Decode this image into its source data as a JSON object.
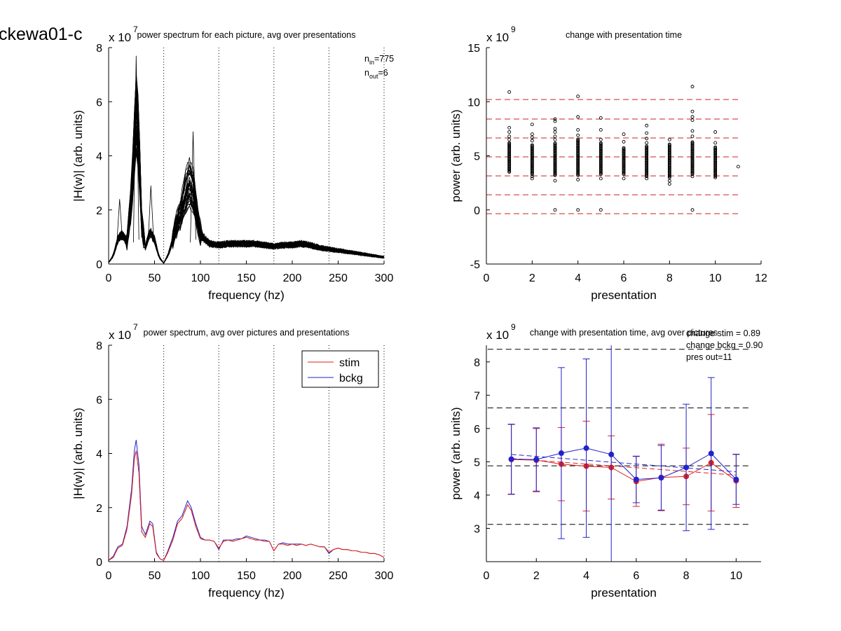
{
  "figure_title": "ckewa01-c",
  "chart_data": [
    {
      "id": "p1",
      "type": "line",
      "title": "power spectrum for each picture, avg over presentations",
      "xlabel": "frequency (hz)",
      "ylabel": "|H(w)| (arb. units)",
      "y_multiplier": {
        "base": "x 10",
        "exp": "7"
      },
      "xlim": [
        0,
        300
      ],
      "ylim": [
        0,
        8
      ],
      "xticks": [
        0,
        50,
        100,
        150,
        200,
        250,
        300
      ],
      "yticks": [
        0,
        2,
        4,
        6,
        8
      ],
      "vlines_dotted": [
        60,
        120,
        180,
        240,
        300
      ],
      "annotations": [
        {
          "main": "n",
          "sub": "in",
          "text": "=775"
        },
        {
          "main": "n",
          "sub": "out",
          "text": "=6"
        }
      ],
      "series_count": 40,
      "mean_envelope": {
        "x": [
          0,
          5,
          10,
          15,
          20,
          25,
          28,
          30,
          33,
          36,
          40,
          45,
          50,
          55,
          60,
          65,
          70,
          75,
          80,
          85,
          88,
          92,
          96,
          100,
          110,
          120,
          130,
          140,
          150,
          160,
          170,
          180,
          190,
          200,
          210,
          220,
          230,
          240,
          250,
          260,
          270,
          280,
          290,
          300
        ],
        "y": [
          0.05,
          0.3,
          0.9,
          1.1,
          0.8,
          2.5,
          4.5,
          5.6,
          4.6,
          1.5,
          0.6,
          1.2,
          0.9,
          0.25,
          0.03,
          0.35,
          0.9,
          1.5,
          2.0,
          2.7,
          2.9,
          2.6,
          1.8,
          1.1,
          0.75,
          0.7,
          0.75,
          0.75,
          0.75,
          0.75,
          0.7,
          0.65,
          0.7,
          0.7,
          0.75,
          0.7,
          0.6,
          0.55,
          0.5,
          0.45,
          0.4,
          0.35,
          0.3,
          0.25
        ]
      },
      "peak_extremes": [
        {
          "x": 30,
          "y": 7.7
        },
        {
          "x": 46,
          "y": 2.9
        },
        {
          "x": 92,
          "y": 4.9
        },
        {
          "x": 12,
          "y": 2.4
        }
      ]
    },
    {
      "id": "p2",
      "type": "scatter",
      "title": "change with presentation time",
      "xlabel": "presentation",
      "ylabel": "power (arb. units)",
      "y_multiplier": {
        "base": "x 10",
        "exp": "9"
      },
      "xlim": [
        0,
        12
      ],
      "ylim": [
        -5,
        15
      ],
      "xticks": [
        0,
        2,
        4,
        6,
        8,
        10,
        12
      ],
      "yticks": [
        -5,
        0,
        5,
        10,
        15
      ],
      "hlines_dashed": [
        10.2,
        8.4,
        6.65,
        4.9,
        3.15,
        1.4,
        -0.35
      ],
      "hline_color": "#cc2222",
      "hline_xrange": [
        0,
        11
      ],
      "point_columns": [
        {
          "x": 1,
          "dense": [
            3.5,
            6.2
          ],
          "outliers": [
            6.5,
            6.8,
            7.2,
            7.6,
            10.9
          ]
        },
        {
          "x": 2,
          "dense": [
            3.3,
            6.0
          ],
          "outliers": [
            2.9,
            3.1,
            6.4,
            6.7,
            7.0,
            7.9
          ]
        },
        {
          "x": 3,
          "dense": [
            3.2,
            6.2
          ],
          "outliers": [
            0.0,
            2.7,
            6.5,
            6.8,
            7.2,
            7.5,
            8.2,
            8.4
          ]
        },
        {
          "x": 4,
          "dense": [
            3.2,
            6.6
          ],
          "outliers": [
            0.0,
            2.8,
            6.9,
            7.4,
            8.6,
            10.5
          ]
        },
        {
          "x": 5,
          "dense": [
            3.3,
            6.2
          ],
          "outliers": [
            0.0,
            2.9,
            6.5,
            7.4,
            8.5
          ]
        },
        {
          "x": 6,
          "dense": [
            3.3,
            5.8
          ],
          "outliers": [
            2.9,
            6.3,
            7.0
          ]
        },
        {
          "x": 7,
          "dense": [
            3.1,
            5.9
          ],
          "outliers": [
            2.9,
            6.2,
            6.6,
            7.1,
            7.8
          ]
        },
        {
          "x": 8,
          "dense": [
            3.0,
            6.1
          ],
          "outliers": [
            2.4,
            2.7,
            6.5
          ]
        },
        {
          "x": 9,
          "dense": [
            3.3,
            6.3
          ],
          "outliers": [
            0.0,
            3.1,
            6.8,
            7.3,
            8.3,
            8.6,
            9.1,
            11.4
          ]
        },
        {
          "x": 10,
          "dense": [
            3.1,
            5.8
          ],
          "outliers": [
            3.0,
            6.2,
            7.2
          ]
        },
        {
          "x": 11,
          "dense": [],
          "outliers": [
            4.0
          ]
        }
      ]
    },
    {
      "id": "p3",
      "type": "line",
      "title": "power spectrum, avg over pictures and presentations",
      "xlabel": "frequency (hz)",
      "ylabel": "|H(w)| (arb. units)",
      "y_multiplier": {
        "base": "x 10",
        "exp": "7"
      },
      "xlim": [
        0,
        300
      ],
      "ylim": [
        0,
        8
      ],
      "xticks": [
        0,
        50,
        100,
        150,
        200,
        250,
        300
      ],
      "yticks": [
        0,
        2,
        4,
        6,
        8
      ],
      "vlines_dotted": [
        60,
        120,
        180,
        240,
        300
      ],
      "legend": {
        "position": "top-right",
        "entries": [
          "stim",
          "bckg"
        ]
      },
      "series": [
        {
          "name": "stim",
          "color": "#dd2222",
          "x": [
            0,
            5,
            10,
            15,
            20,
            25,
            28,
            30,
            33,
            36,
            40,
            45,
            48,
            52,
            56,
            60,
            64,
            70,
            75,
            80,
            86,
            90,
            95,
            100,
            105,
            110,
            115,
            120,
            125,
            130,
            135,
            140,
            145,
            150,
            155,
            160,
            165,
            170,
            175,
            180,
            185,
            190,
            195,
            200,
            205,
            210,
            215,
            220,
            225,
            230,
            235,
            240,
            245,
            250,
            255,
            260,
            265,
            270,
            275,
            280,
            285,
            290,
            295,
            300
          ],
          "y": [
            0.05,
            0.15,
            0.5,
            0.6,
            1.2,
            2.5,
            3.8,
            4.1,
            3.3,
            1.1,
            0.9,
            1.4,
            1.3,
            0.3,
            0.1,
            0.05,
            0.3,
            0.8,
            1.4,
            1.6,
            2.1,
            1.9,
            1.3,
            0.85,
            0.8,
            0.8,
            0.75,
            0.5,
            0.75,
            0.8,
            0.75,
            0.8,
            0.85,
            0.9,
            0.85,
            0.8,
            0.8,
            0.75,
            0.75,
            0.4,
            0.65,
            0.65,
            0.6,
            0.65,
            0.6,
            0.65,
            0.6,
            0.65,
            0.6,
            0.55,
            0.55,
            0.35,
            0.45,
            0.5,
            0.45,
            0.45,
            0.4,
            0.4,
            0.35,
            0.35,
            0.3,
            0.3,
            0.25,
            0.15
          ]
        },
        {
          "name": "bckg",
          "color": "#2222cc",
          "x": [
            0,
            5,
            10,
            15,
            20,
            25,
            28,
            30,
            33,
            36,
            40,
            45,
            48,
            52,
            56,
            60,
            64,
            70,
            75,
            80,
            86,
            90,
            95,
            100,
            105,
            110,
            115,
            120,
            125,
            130,
            135,
            140,
            145,
            150,
            155,
            160,
            165,
            170,
            175,
            180,
            185,
            190,
            195,
            200,
            205,
            210,
            215,
            220,
            225,
            230,
            235,
            240,
            245,
            250,
            255,
            260,
            265,
            270,
            275,
            280,
            285,
            290,
            295,
            300
          ],
          "y": [
            0.05,
            0.2,
            0.55,
            0.65,
            1.3,
            2.7,
            4.1,
            4.5,
            3.6,
            1.3,
            1.0,
            1.5,
            1.4,
            0.35,
            0.1,
            0.05,
            0.35,
            0.9,
            1.5,
            1.7,
            2.25,
            2.0,
            1.4,
            0.9,
            0.8,
            0.8,
            0.75,
            0.45,
            0.8,
            0.8,
            0.8,
            0.85,
            0.85,
            0.95,
            0.9,
            0.85,
            0.8,
            0.8,
            0.75,
            0.4,
            0.65,
            0.7,
            0.65,
            0.65,
            0.65,
            0.65,
            0.6,
            0.65,
            0.6,
            0.55,
            0.55,
            0.3,
            0.45,
            0.5,
            0.45,
            0.45,
            0.4,
            0.4,
            0.35,
            0.35,
            0.3,
            0.3,
            0.25,
            0.15
          ]
        }
      ]
    },
    {
      "id": "p4",
      "type": "line",
      "title": "change with presentation time, avg over pictures",
      "xlabel": "presentation",
      "ylabel": "power (arb. units)",
      "y_multiplier": {
        "base": "x 10",
        "exp": "9"
      },
      "xlim": [
        0,
        11
      ],
      "ylim": [
        2,
        8.5
      ],
      "xticks": [
        0,
        2,
        4,
        6,
        8,
        10
      ],
      "yticks": [
        3,
        4,
        5,
        6,
        7,
        8
      ],
      "annotations": [
        "change stim = 0.89",
        "change bckg = 0.90",
        "pres out=11"
      ],
      "hlines_dashed_black": [
        8.38,
        6.62,
        4.88,
        3.12
      ],
      "series": [
        {
          "name": "stim",
          "color": "#dd2222",
          "x": [
            1,
            2,
            3,
            4,
            5,
            6,
            7,
            8,
            9,
            10
          ],
          "y": [
            5.07,
            5.05,
            4.93,
            4.87,
            4.83,
            4.41,
            4.53,
            4.56,
            4.97,
            4.43
          ],
          "err": [
            1.05,
            0.95,
            1.1,
            1.35,
            0.95,
            0.75,
            1.0,
            0.85,
            1.45,
            0.8
          ],
          "trend": [
            5.1,
            4.6
          ]
        },
        {
          "name": "bckg",
          "color": "#2222cc",
          "x": [
            1,
            2,
            3,
            4,
            5,
            6,
            7,
            8,
            9,
            10
          ],
          "y": [
            5.08,
            5.07,
            5.26,
            5.41,
            5.22,
            4.47,
            4.52,
            4.83,
            5.25,
            4.47
          ],
          "err": [
            1.05,
            0.95,
            2.57,
            2.68,
            3.38,
            0.7,
            0.97,
            1.9,
            2.28,
            0.75
          ],
          "trend": [
            5.22,
            4.7
          ]
        }
      ]
    }
  ]
}
